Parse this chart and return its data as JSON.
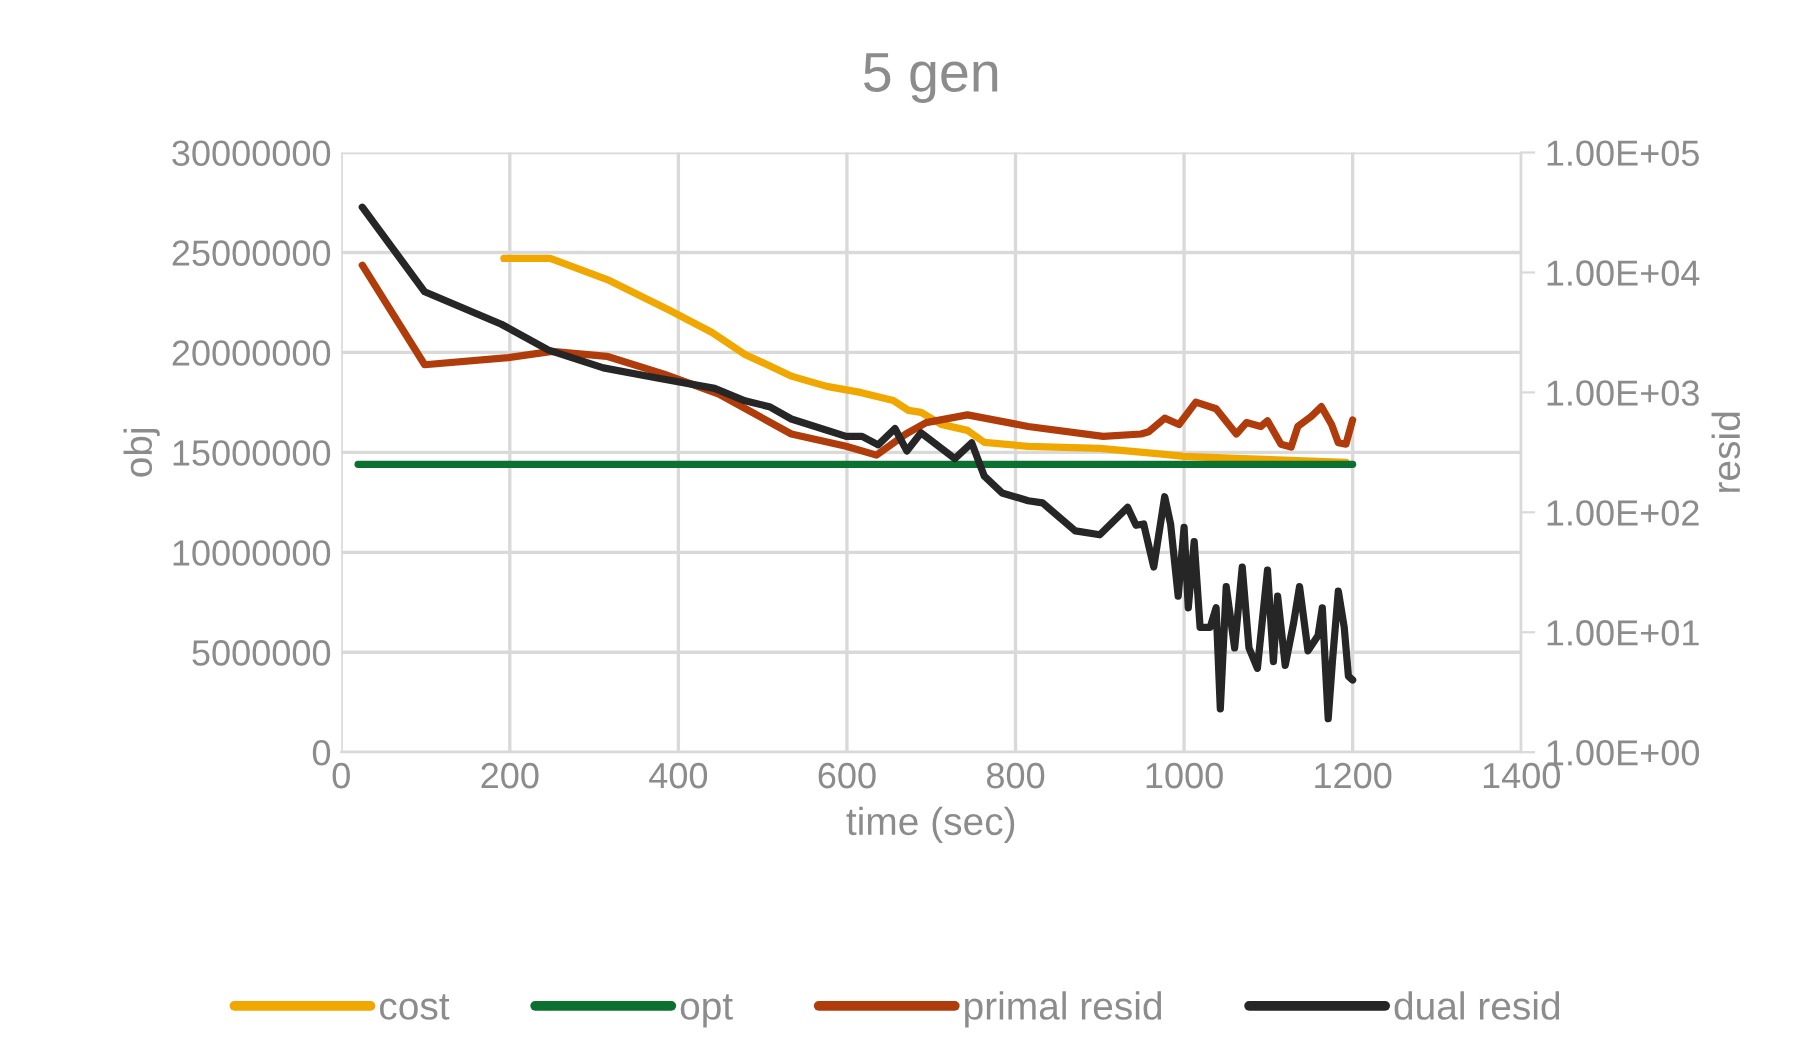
{
  "chart_data": {
    "type": "line",
    "title": "5 gen",
    "xlabel": "time (sec)",
    "ylabel": "obj",
    "y2label": "resid",
    "xlim": [
      0,
      1400
    ],
    "xticks": [
      0,
      200,
      400,
      600,
      800,
      1000,
      1200,
      1400
    ],
    "ylim": [
      0,
      30000000
    ],
    "yticks": [
      0,
      5000000,
      10000000,
      15000000,
      20000000,
      25000000,
      30000000
    ],
    "y2lim": [
      1,
      100000
    ],
    "y2ticks": [
      {
        "value": 1,
        "label": "1.00E+00"
      },
      {
        "value": 10,
        "label": "1.00E+01"
      },
      {
        "value": 100,
        "label": "1.00E+02"
      },
      {
        "value": 1000,
        "label": "1.00E+03"
      },
      {
        "value": 10000,
        "label": "1.00E+04"
      },
      {
        "value": 100000,
        "label": "1.00E+05"
      }
    ],
    "log": "y2",
    "grid": true,
    "legend": "bottom",
    "marker": "none",
    "line_style": "solid",
    "series": [
      {
        "name": "cost",
        "color": "#f0a800",
        "x": [
          193,
          248,
          318,
          390,
          440,
          479,
          535,
          576,
          616,
          655,
          673,
          688,
          712,
          743,
          763,
          815,
          900,
          977,
          1000,
          1062,
          1192
        ],
        "values": [
          24700000,
          24700000,
          23600000,
          22100000,
          21000000,
          19900000,
          18800000,
          18300000,
          18000000,
          17600000,
          17100000,
          17000000,
          16400000,
          16100000,
          15500000,
          15300000,
          15200000,
          14900000,
          14800000,
          14700000,
          14500000
        ]
      },
      {
        "name": "opt",
        "color": "#0b7030",
        "x": [
          20,
          1200
        ],
        "values": [
          14400000,
          14400000
        ]
      },
      {
        "name": "primal resid",
        "color": "#b03c0c",
        "axis": "y2",
        "x": [
          25,
          99,
          198,
          250,
          315,
          383,
          448,
          534,
          599,
          635,
          670,
          694,
          743,
          815,
          904,
          949,
          958,
          977,
          994,
          1014,
          1038,
          1062,
          1074,
          1091,
          1099,
          1115,
          1127,
          1135,
          1151,
          1163,
          1175,
          1183,
          1192,
          1200
        ],
        "values": [
          11500,
          1700,
          1950,
          2200,
          2000,
          1420,
          970,
          450,
          355,
          300,
          450,
          560,
          650,
          520,
          430,
          450,
          470,
          610,
          540,
          830,
          730,
          450,
          560,
          520,
          580,
          370,
          350,
          520,
          630,
          760,
          540,
          380,
          370,
          590
        ]
      },
      {
        "name": "dual resid",
        "color": "#262626",
        "axis": "y2",
        "x": [
          25,
          99,
          190,
          246,
          311,
          375,
          443,
          479,
          508,
          534,
          599,
          618,
          637,
          657,
          671,
          688,
          728,
          748,
          763,
          784,
          815,
          832,
          871,
          900,
          933,
          943,
          952,
          964,
          977,
          984,
          993,
          1000,
          1005,
          1012,
          1019,
          1031,
          1038,
          1043,
          1050,
          1060,
          1069,
          1077,
          1087,
          1099,
          1106,
          1111,
          1120,
          1130,
          1137,
          1147,
          1159,
          1164,
          1171,
          1176,
          1183,
          1190,
          1195,
          1200
        ],
        "values": [
          35000,
          6900,
          3700,
          2250,
          1600,
          1320,
          1080,
          850,
          760,
          600,
          430,
          430,
          365,
          500,
          325,
          460,
          280,
          380,
          200,
          145,
          125,
          120,
          70,
          65,
          110,
          78,
          80,
          35,
          135,
          80,
          20,
          75,
          16,
          57,
          11,
          11,
          16,
          2.3,
          24,
          7.4,
          35,
          7.4,
          5,
          33,
          5.7,
          20,
          5.3,
          12,
          24,
          7,
          9.4,
          16,
          1.9,
          5.7,
          22,
          11,
          4.3,
          4
        ]
      }
    ]
  }
}
